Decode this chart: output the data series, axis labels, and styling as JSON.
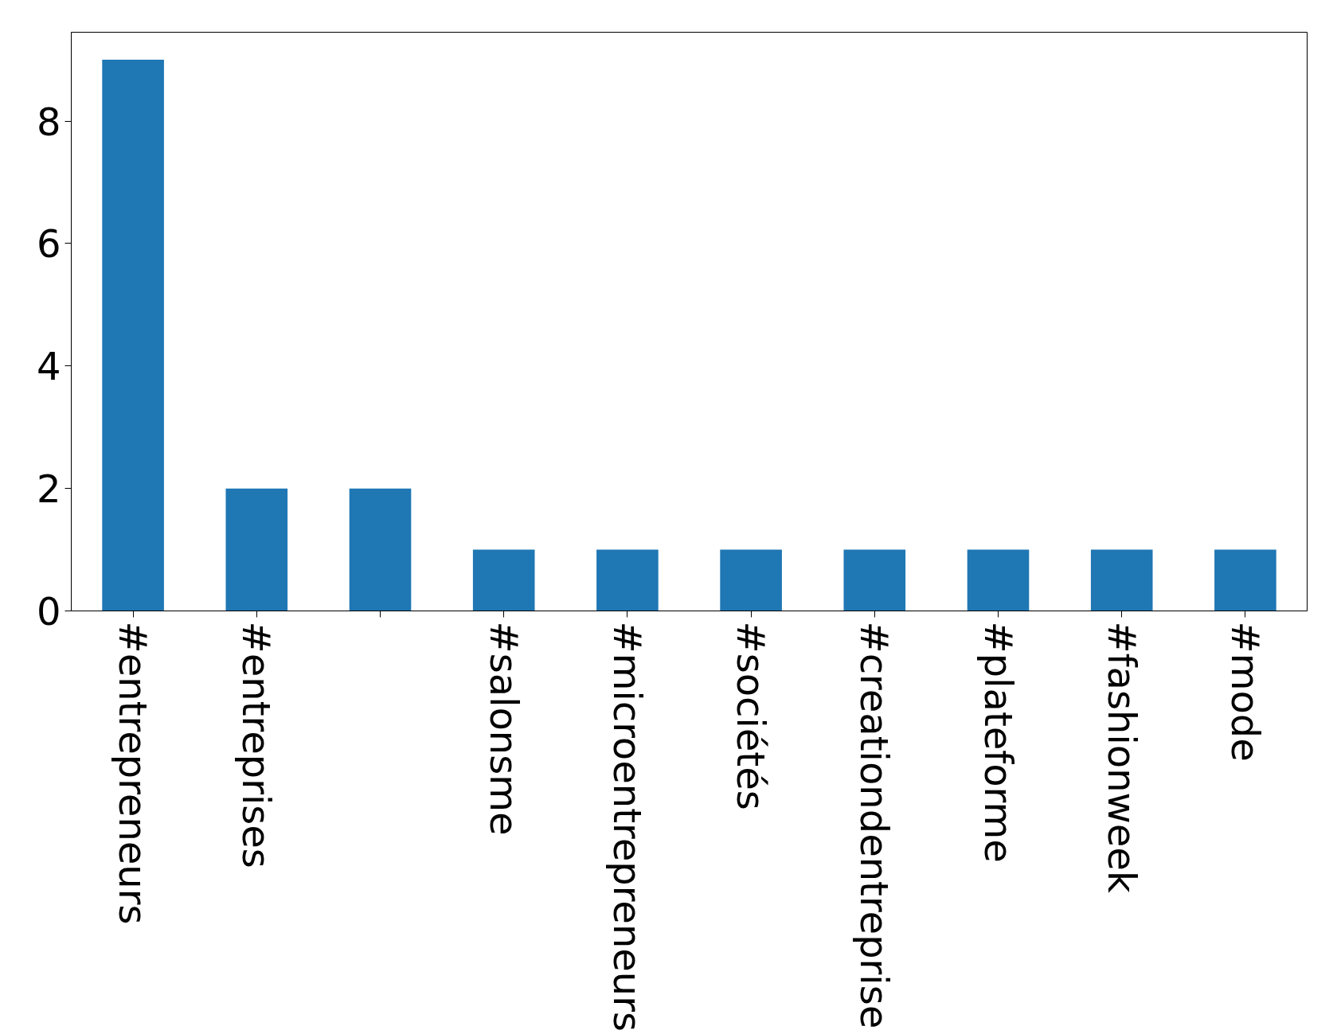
{
  "chart_data": {
    "type": "bar",
    "categories": [
      "#entrepreneurs",
      "#entreprises",
      null,
      "#salonsme",
      "#microentrepreneurs",
      "#sociétés",
      "#creationdentreprise",
      "#plateforme",
      "#fashionweek",
      "#mode"
    ],
    "values": [
      9,
      2,
      2,
      1,
      1,
      1,
      1,
      1,
      1,
      1
    ],
    "color": "#1f77b4",
    "ylim": [
      0,
      9.45
    ],
    "yticks": [
      0,
      2,
      4,
      6,
      8
    ],
    "grid": false
  }
}
